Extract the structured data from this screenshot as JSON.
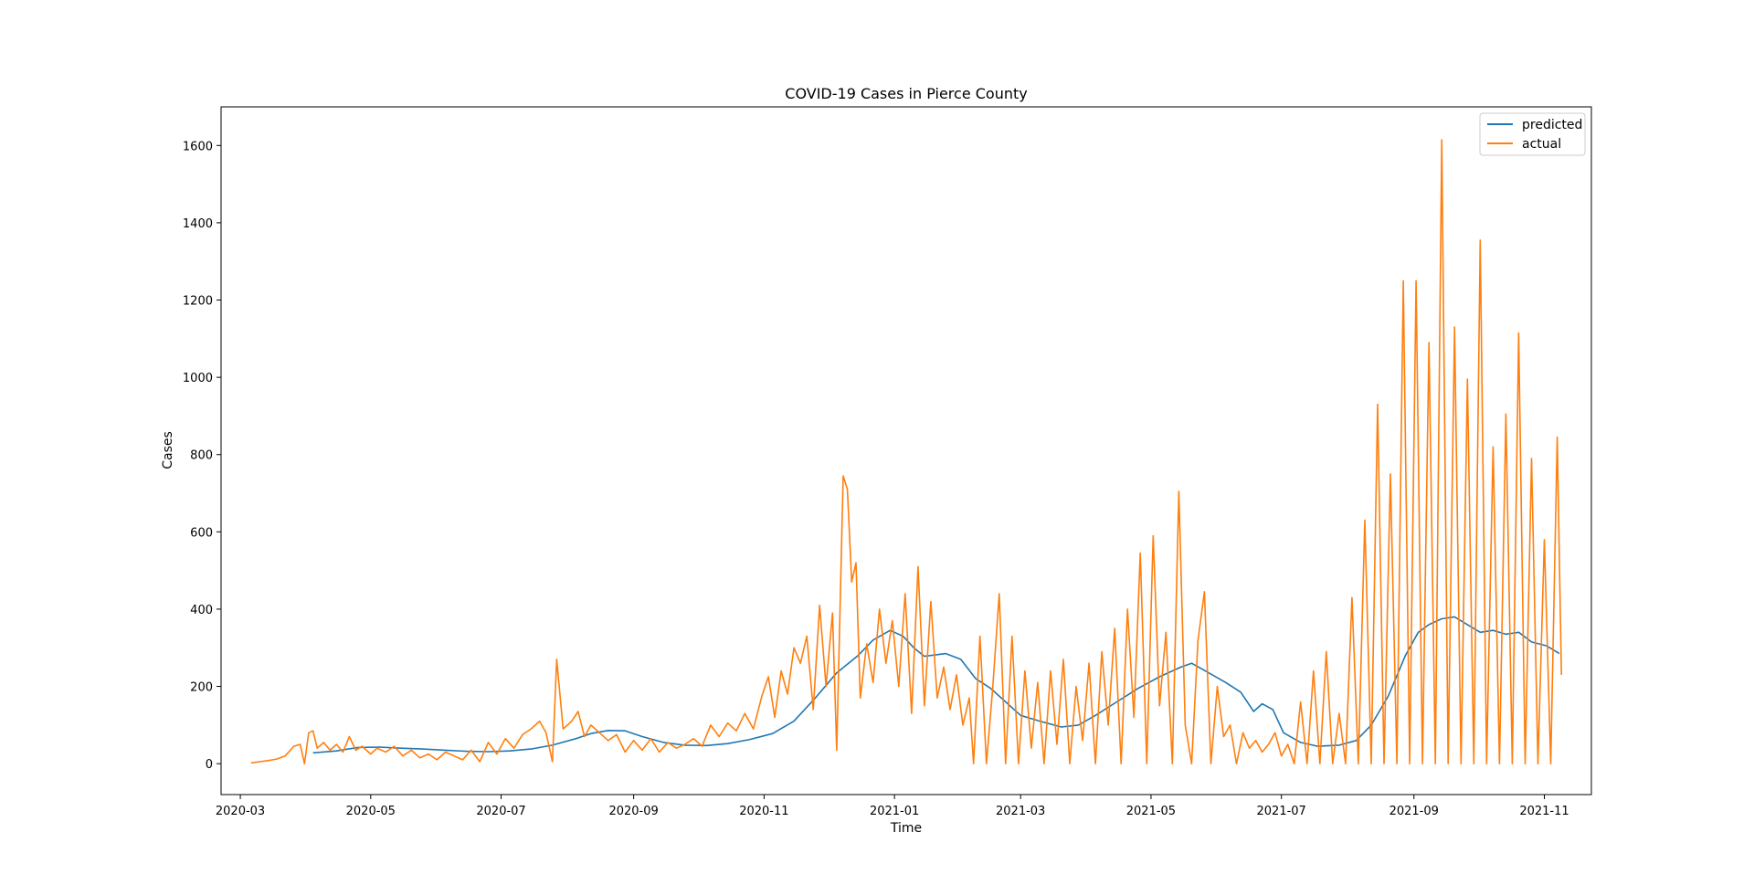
{
  "chart_data": {
    "type": "line",
    "title": "COVID-19 Cases in Pierce County",
    "xlabel": "Time",
    "ylabel": "Cases",
    "x_type": "date",
    "xlim": [
      "2020-02-21",
      "2021-11-23"
    ],
    "ylim": [
      -80,
      1700
    ],
    "x_ticks": [
      "2020-03",
      "2020-05",
      "2020-07",
      "2020-09",
      "2020-11",
      "2021-01",
      "2021-03",
      "2021-05",
      "2021-07",
      "2021-09",
      "2021-11"
    ],
    "y_ticks": [
      0,
      200,
      400,
      600,
      800,
      1000,
      1200,
      1400,
      1600
    ],
    "grid": false,
    "legend": {
      "placement": "top-right",
      "entries": [
        "predicted",
        "actual"
      ]
    },
    "colors": {
      "predicted": "#1f77b4",
      "actual": "#ff7f0e"
    },
    "series": [
      {
        "name": "predicted",
        "points": [
          [
            "2020-04-04",
            28
          ],
          [
            "2020-04-15",
            33
          ],
          [
            "2020-04-25",
            42
          ],
          [
            "2020-05-05",
            43
          ],
          [
            "2020-05-15",
            40
          ],
          [
            "2020-05-25",
            38
          ],
          [
            "2020-06-05",
            35
          ],
          [
            "2020-06-15",
            32
          ],
          [
            "2020-06-25",
            31
          ],
          [
            "2020-07-05",
            33
          ],
          [
            "2020-07-15",
            38
          ],
          [
            "2020-07-25",
            48
          ],
          [
            "2020-08-05",
            65
          ],
          [
            "2020-08-12",
            78
          ],
          [
            "2020-08-20",
            86
          ],
          [
            "2020-08-28",
            85
          ],
          [
            "2020-09-05",
            70
          ],
          [
            "2020-09-15",
            55
          ],
          [
            "2020-09-25",
            48
          ],
          [
            "2020-10-05",
            47
          ],
          [
            "2020-10-15",
            52
          ],
          [
            "2020-10-25",
            62
          ],
          [
            "2020-11-05",
            78
          ],
          [
            "2020-11-15",
            110
          ],
          [
            "2020-11-25",
            170
          ],
          [
            "2020-12-05",
            235
          ],
          [
            "2020-12-15",
            280
          ],
          [
            "2020-12-22",
            320
          ],
          [
            "2020-12-30",
            345
          ],
          [
            "2021-01-05",
            330
          ],
          [
            "2021-01-10",
            300
          ],
          [
            "2021-01-15",
            278
          ],
          [
            "2021-01-25",
            285
          ],
          [
            "2021-02-01",
            270
          ],
          [
            "2021-02-08",
            220
          ],
          [
            "2021-02-15",
            195
          ],
          [
            "2021-02-22",
            160
          ],
          [
            "2021-03-01",
            125
          ],
          [
            "2021-03-10",
            110
          ],
          [
            "2021-03-20",
            95
          ],
          [
            "2021-03-28",
            100
          ],
          [
            "2021-04-05",
            125
          ],
          [
            "2021-04-15",
            160
          ],
          [
            "2021-04-25",
            195
          ],
          [
            "2021-05-05",
            225
          ],
          [
            "2021-05-15",
            250
          ],
          [
            "2021-05-20",
            260
          ],
          [
            "2021-05-28",
            235
          ],
          [
            "2021-06-05",
            210
          ],
          [
            "2021-06-12",
            185
          ],
          [
            "2021-06-18",
            135
          ],
          [
            "2021-06-22",
            155
          ],
          [
            "2021-06-27",
            140
          ],
          [
            "2021-07-02",
            80
          ],
          [
            "2021-07-10",
            55
          ],
          [
            "2021-07-18",
            45
          ],
          [
            "2021-07-28",
            48
          ],
          [
            "2021-08-05",
            60
          ],
          [
            "2021-08-12",
            100
          ],
          [
            "2021-08-20",
            175
          ],
          [
            "2021-08-28",
            280
          ],
          [
            "2021-09-03",
            340
          ],
          [
            "2021-09-08",
            360
          ],
          [
            "2021-09-14",
            375
          ],
          [
            "2021-09-20",
            380
          ],
          [
            "2021-09-26",
            360
          ],
          [
            "2021-10-02",
            340
          ],
          [
            "2021-10-08",
            345
          ],
          [
            "2021-10-14",
            335
          ],
          [
            "2021-10-20",
            340
          ],
          [
            "2021-10-26",
            315
          ],
          [
            "2021-11-02",
            305
          ],
          [
            "2021-11-08",
            285
          ]
        ]
      },
      {
        "name": "actual",
        "points": [
          [
            "2020-03-06",
            2
          ],
          [
            "2020-03-10",
            5
          ],
          [
            "2020-03-14",
            8
          ],
          [
            "2020-03-18",
            12
          ],
          [
            "2020-03-22",
            20
          ],
          [
            "2020-03-26",
            45
          ],
          [
            "2020-03-29",
            50
          ],
          [
            "2020-03-31",
            0
          ],
          [
            "2020-04-02",
            80
          ],
          [
            "2020-04-04",
            85
          ],
          [
            "2020-04-06",
            40
          ],
          [
            "2020-04-09",
            55
          ],
          [
            "2020-04-12",
            35
          ],
          [
            "2020-04-15",
            50
          ],
          [
            "2020-04-18",
            30
          ],
          [
            "2020-04-21",
            70
          ],
          [
            "2020-04-24",
            35
          ],
          [
            "2020-04-27",
            45
          ],
          [
            "2020-05-01",
            25
          ],
          [
            "2020-05-04",
            40
          ],
          [
            "2020-05-08",
            30
          ],
          [
            "2020-05-12",
            45
          ],
          [
            "2020-05-16",
            20
          ],
          [
            "2020-05-20",
            35
          ],
          [
            "2020-05-24",
            15
          ],
          [
            "2020-05-28",
            25
          ],
          [
            "2020-06-01",
            10
          ],
          [
            "2020-06-05",
            30
          ],
          [
            "2020-06-09",
            20
          ],
          [
            "2020-06-13",
            10
          ],
          [
            "2020-06-17",
            35
          ],
          [
            "2020-06-21",
            5
          ],
          [
            "2020-06-25",
            55
          ],
          [
            "2020-06-29",
            25
          ],
          [
            "2020-07-03",
            65
          ],
          [
            "2020-07-07",
            40
          ],
          [
            "2020-07-11",
            75
          ],
          [
            "2020-07-15",
            90
          ],
          [
            "2020-07-19",
            110
          ],
          [
            "2020-07-22",
            80
          ],
          [
            "2020-07-25",
            5
          ],
          [
            "2020-07-27",
            270
          ],
          [
            "2020-07-30",
            90
          ],
          [
            "2020-08-03",
            110
          ],
          [
            "2020-08-06",
            135
          ],
          [
            "2020-08-09",
            70
          ],
          [
            "2020-08-12",
            100
          ],
          [
            "2020-08-16",
            80
          ],
          [
            "2020-08-20",
            60
          ],
          [
            "2020-08-24",
            75
          ],
          [
            "2020-08-28",
            30
          ],
          [
            "2020-09-01",
            60
          ],
          [
            "2020-09-05",
            35
          ],
          [
            "2020-09-09",
            65
          ],
          [
            "2020-09-13",
            30
          ],
          [
            "2020-09-17",
            55
          ],
          [
            "2020-09-21",
            40
          ],
          [
            "2020-09-25",
            50
          ],
          [
            "2020-09-29",
            65
          ],
          [
            "2020-10-03",
            45
          ],
          [
            "2020-10-07",
            100
          ],
          [
            "2020-10-11",
            70
          ],
          [
            "2020-10-15",
            105
          ],
          [
            "2020-10-19",
            85
          ],
          [
            "2020-10-23",
            130
          ],
          [
            "2020-10-27",
            90
          ],
          [
            "2020-10-31",
            175
          ],
          [
            "2020-11-03",
            225
          ],
          [
            "2020-11-06",
            120
          ],
          [
            "2020-11-09",
            240
          ],
          [
            "2020-11-12",
            180
          ],
          [
            "2020-11-15",
            300
          ],
          [
            "2020-11-18",
            260
          ],
          [
            "2020-11-21",
            330
          ],
          [
            "2020-11-24",
            140
          ],
          [
            "2020-11-27",
            410
          ],
          [
            "2020-11-30",
            200
          ],
          [
            "2020-12-03",
            390
          ],
          [
            "2020-12-05",
            35
          ],
          [
            "2020-12-08",
            745
          ],
          [
            "2020-12-10",
            710
          ],
          [
            "2020-12-12",
            470
          ],
          [
            "2020-12-14",
            520
          ],
          [
            "2020-12-16",
            170
          ],
          [
            "2020-12-19",
            310
          ],
          [
            "2020-12-22",
            210
          ],
          [
            "2020-12-25",
            400
          ],
          [
            "2020-12-28",
            260
          ],
          [
            "2020-12-31",
            370
          ],
          [
            "2021-01-03",
            200
          ],
          [
            "2021-01-06",
            440
          ],
          [
            "2021-01-09",
            130
          ],
          [
            "2021-01-12",
            510
          ],
          [
            "2021-01-15",
            150
          ],
          [
            "2021-01-18",
            420
          ],
          [
            "2021-01-21",
            170
          ],
          [
            "2021-01-24",
            250
          ],
          [
            "2021-01-27",
            140
          ],
          [
            "2021-01-30",
            230
          ],
          [
            "2021-02-02",
            100
          ],
          [
            "2021-02-05",
            170
          ],
          [
            "2021-02-07",
            0
          ],
          [
            "2021-02-10",
            330
          ],
          [
            "2021-02-13",
            0
          ],
          [
            "2021-02-16",
            200
          ],
          [
            "2021-02-19",
            440
          ],
          [
            "2021-02-22",
            0
          ],
          [
            "2021-02-25",
            330
          ],
          [
            "2021-02-28",
            0
          ],
          [
            "2021-03-03",
            240
          ],
          [
            "2021-03-06",
            40
          ],
          [
            "2021-03-09",
            210
          ],
          [
            "2021-03-12",
            0
          ],
          [
            "2021-03-15",
            240
          ],
          [
            "2021-03-18",
            50
          ],
          [
            "2021-03-21",
            270
          ],
          [
            "2021-03-24",
            0
          ],
          [
            "2021-03-27",
            200
          ],
          [
            "2021-03-30",
            60
          ],
          [
            "2021-04-02",
            260
          ],
          [
            "2021-04-05",
            0
          ],
          [
            "2021-04-08",
            290
          ],
          [
            "2021-04-11",
            100
          ],
          [
            "2021-04-14",
            350
          ],
          [
            "2021-04-17",
            0
          ],
          [
            "2021-04-20",
            400
          ],
          [
            "2021-04-23",
            120
          ],
          [
            "2021-04-26",
            545
          ],
          [
            "2021-04-29",
            0
          ],
          [
            "2021-05-02",
            590
          ],
          [
            "2021-05-05",
            150
          ],
          [
            "2021-05-08",
            340
          ],
          [
            "2021-05-11",
            0
          ],
          [
            "2021-05-14",
            705
          ],
          [
            "2021-05-17",
            100
          ],
          [
            "2021-05-20",
            0
          ],
          [
            "2021-05-23",
            320
          ],
          [
            "2021-05-26",
            445
          ],
          [
            "2021-05-29",
            0
          ],
          [
            "2021-06-01",
            200
          ],
          [
            "2021-06-04",
            70
          ],
          [
            "2021-06-07",
            100
          ],
          [
            "2021-06-10",
            0
          ],
          [
            "2021-06-13",
            80
          ],
          [
            "2021-06-16",
            40
          ],
          [
            "2021-06-19",
            60
          ],
          [
            "2021-06-22",
            30
          ],
          [
            "2021-06-25",
            50
          ],
          [
            "2021-06-28",
            80
          ],
          [
            "2021-07-01",
            20
          ],
          [
            "2021-07-04",
            50
          ],
          [
            "2021-07-07",
            0
          ],
          [
            "2021-07-10",
            160
          ],
          [
            "2021-07-13",
            0
          ],
          [
            "2021-07-16",
            240
          ],
          [
            "2021-07-19",
            0
          ],
          [
            "2021-07-22",
            290
          ],
          [
            "2021-07-25",
            0
          ],
          [
            "2021-07-28",
            130
          ],
          [
            "2021-07-31",
            0
          ],
          [
            "2021-08-03",
            430
          ],
          [
            "2021-08-06",
            0
          ],
          [
            "2021-08-09",
            630
          ],
          [
            "2021-08-12",
            0
          ],
          [
            "2021-08-15",
            930
          ],
          [
            "2021-08-18",
            0
          ],
          [
            "2021-08-21",
            750
          ],
          [
            "2021-08-24",
            0
          ],
          [
            "2021-08-27",
            1250
          ],
          [
            "2021-08-30",
            0
          ],
          [
            "2021-09-02",
            1250
          ],
          [
            "2021-09-05",
            0
          ],
          [
            "2021-09-08",
            1090
          ],
          [
            "2021-09-11",
            0
          ],
          [
            "2021-09-14",
            1615
          ],
          [
            "2021-09-17",
            0
          ],
          [
            "2021-09-20",
            1130
          ],
          [
            "2021-09-23",
            0
          ],
          [
            "2021-09-26",
            995
          ],
          [
            "2021-09-29",
            0
          ],
          [
            "2021-10-02",
            1355
          ],
          [
            "2021-10-05",
            0
          ],
          [
            "2021-10-08",
            820
          ],
          [
            "2021-10-11",
            0
          ],
          [
            "2021-10-14",
            905
          ],
          [
            "2021-10-17",
            0
          ],
          [
            "2021-10-20",
            1115
          ],
          [
            "2021-10-23",
            0
          ],
          [
            "2021-10-26",
            790
          ],
          [
            "2021-10-29",
            0
          ],
          [
            "2021-11-01",
            580
          ],
          [
            "2021-11-04",
            0
          ],
          [
            "2021-11-07",
            845
          ],
          [
            "2021-11-09",
            230
          ]
        ]
      }
    ]
  }
}
